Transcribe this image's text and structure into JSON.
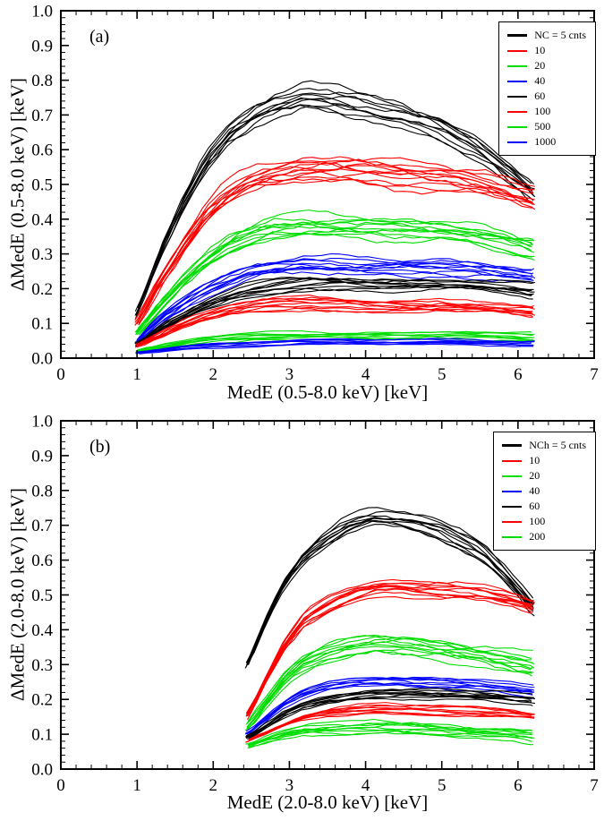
{
  "figure": {
    "background": "#ffffff",
    "frame_color": "#000000"
  },
  "chart_data": [
    {
      "type": "line",
      "panel_label": "(a)",
      "xlabel": "MedE (0.5-8.0 keV) [keV]",
      "ylabel": "ΔMedE (0.5-8.0 keV) [keV]",
      "xlim": [
        0,
        7
      ],
      "ylim": [
        0,
        1
      ],
      "xticks": [
        0,
        1,
        2,
        3,
        4,
        5,
        6,
        7
      ],
      "xtick_labels": [
        "0",
        "1",
        "2",
        "3",
        "4",
        "5",
        "6",
        "7"
      ],
      "yticks": [
        0,
        0.1,
        0.2,
        0.3,
        0.4,
        0.5,
        0.6,
        0.7,
        0.8,
        0.9,
        1.0
      ],
      "ytick_labels": [
        "0.0",
        "0.1",
        "0.2",
        "0.3",
        "0.4",
        "0.5",
        "0.6",
        "0.7",
        "0.8",
        "0.9",
        "1.0"
      ],
      "x_minor_divisions": 5,
      "y_minor_divisions": 5,
      "grid": false,
      "legend": {
        "position": "top-right",
        "entries": [
          {
            "label": "NC = 5 cnts",
            "color": "#000000"
          },
          {
            "label": "10",
            "color": "#ff0000"
          },
          {
            "label": "20",
            "color": "#00dd00"
          },
          {
            "label": "40",
            "color": "#0000ff"
          },
          {
            "label": "60",
            "color": "#000000"
          },
          {
            "label": "100",
            "color": "#ff0000"
          },
          {
            "label": "500",
            "color": "#00dd00"
          },
          {
            "label": "1000",
            "color": "#0000ff"
          }
        ]
      },
      "series": [
        {
          "name": "NC = 5 cnts",
          "color": "#000000",
          "n_curves": 10,
          "spread": 0.03,
          "x": [
            1.0,
            1.3,
            1.6,
            1.9,
            2.2,
            2.5,
            2.8,
            3.2,
            3.6,
            4.0,
            4.5,
            5.0,
            5.5,
            6.0,
            6.2
          ],
          "y": [
            0.13,
            0.3,
            0.44,
            0.56,
            0.64,
            0.69,
            0.72,
            0.75,
            0.745,
            0.73,
            0.7,
            0.66,
            0.6,
            0.51,
            0.47
          ]
        },
        {
          "name": "NC = 10 cnts",
          "color": "#ff0000",
          "n_curves": 12,
          "spread": 0.03,
          "x": [
            1.0,
            1.3,
            1.6,
            1.9,
            2.2,
            2.5,
            2.8,
            3.2,
            3.6,
            4.0,
            4.5,
            5.0,
            5.5,
            6.0,
            6.2
          ],
          "y": [
            0.1,
            0.22,
            0.32,
            0.41,
            0.47,
            0.51,
            0.53,
            0.545,
            0.545,
            0.54,
            0.53,
            0.52,
            0.5,
            0.47,
            0.455
          ]
        },
        {
          "name": "NC = 20 cnts",
          "color": "#00dd00",
          "n_curves": 11,
          "spread": 0.026,
          "x": [
            1.0,
            1.3,
            1.6,
            1.9,
            2.2,
            2.5,
            2.8,
            3.2,
            3.6,
            4.0,
            4.5,
            5.0,
            5.5,
            6.0,
            6.2
          ],
          "y": [
            0.07,
            0.15,
            0.22,
            0.28,
            0.325,
            0.355,
            0.375,
            0.385,
            0.38,
            0.375,
            0.37,
            0.365,
            0.35,
            0.325,
            0.315
          ]
        },
        {
          "name": "NC = 40 cnts",
          "color": "#0000ff",
          "n_curves": 10,
          "spread": 0.02,
          "x": [
            1.0,
            1.3,
            1.6,
            1.9,
            2.2,
            2.5,
            2.8,
            3.2,
            3.6,
            4.0,
            4.5,
            5.0,
            5.5,
            6.0,
            6.2
          ],
          "y": [
            0.05,
            0.11,
            0.155,
            0.195,
            0.225,
            0.25,
            0.26,
            0.27,
            0.268,
            0.265,
            0.262,
            0.26,
            0.252,
            0.24,
            0.235
          ]
        },
        {
          "name": "NC = 60 cnts",
          "color": "#000000",
          "n_curves": 10,
          "spread": 0.016,
          "x": [
            1.0,
            1.3,
            1.6,
            1.9,
            2.2,
            2.5,
            2.8,
            3.2,
            3.6,
            4.0,
            4.5,
            5.0,
            5.5,
            6.0,
            6.2
          ],
          "y": [
            0.04,
            0.085,
            0.12,
            0.15,
            0.175,
            0.195,
            0.205,
            0.215,
            0.215,
            0.213,
            0.213,
            0.213,
            0.208,
            0.198,
            0.193
          ]
        },
        {
          "name": "NC = 100 cnts",
          "color": "#ff0000",
          "n_curves": 10,
          "spread": 0.016,
          "x": [
            1.0,
            1.3,
            1.6,
            1.9,
            2.2,
            2.5,
            2.8,
            3.2,
            3.6,
            4.0,
            4.5,
            5.0,
            5.5,
            6.0,
            6.2
          ],
          "y": [
            0.035,
            0.065,
            0.095,
            0.118,
            0.135,
            0.148,
            0.155,
            0.158,
            0.157,
            0.153,
            0.15,
            0.15,
            0.145,
            0.135,
            0.13
          ]
        },
        {
          "name": "NC = 500 cnts",
          "color": "#00dd00",
          "n_curves": 8,
          "spread": 0.009,
          "x": [
            1.0,
            1.3,
            1.6,
            1.9,
            2.2,
            2.5,
            2.8,
            3.2,
            3.6,
            4.0,
            4.5,
            5.0,
            5.5,
            6.0,
            6.2
          ],
          "y": [
            0.02,
            0.032,
            0.042,
            0.051,
            0.057,
            0.061,
            0.064,
            0.066,
            0.066,
            0.066,
            0.066,
            0.066,
            0.064,
            0.061,
            0.06
          ]
        },
        {
          "name": "NC = 1000 cnts",
          "color": "#0000ff",
          "n_curves": 8,
          "spread": 0.007,
          "x": [
            1.0,
            1.3,
            1.6,
            1.9,
            2.2,
            2.5,
            2.8,
            3.2,
            3.6,
            4.0,
            4.5,
            5.0,
            5.5,
            6.0,
            6.2
          ],
          "y": [
            0.015,
            0.022,
            0.029,
            0.035,
            0.039,
            0.042,
            0.044,
            0.046,
            0.046,
            0.046,
            0.046,
            0.046,
            0.045,
            0.044,
            0.044
          ]
        }
      ]
    },
    {
      "type": "line",
      "panel_label": "(b)",
      "xlabel": "MedE (2.0-8.0 keV) [keV]",
      "ylabel": "ΔMedE (2.0-8.0 keV) [keV]",
      "xlim": [
        0,
        7
      ],
      "ylim": [
        0,
        1
      ],
      "xticks": [
        0,
        1,
        2,
        3,
        4,
        5,
        6,
        7
      ],
      "xtick_labels": [
        "0",
        "1",
        "2",
        "3",
        "4",
        "5",
        "6",
        "7"
      ],
      "yticks": [
        0,
        0.1,
        0.2,
        0.3,
        0.4,
        0.5,
        0.6,
        0.7,
        0.8,
        0.9,
        1.0
      ],
      "ytick_labels": [
        "0.0",
        "0.1",
        "0.2",
        "0.3",
        "0.4",
        "0.5",
        "0.6",
        "0.7",
        "0.8",
        "0.9",
        "1.0"
      ],
      "x_minor_divisions": 5,
      "y_minor_divisions": 5,
      "grid": false,
      "legend": {
        "position": "top-right",
        "entries": [
          {
            "label": "NCh = 5 cnts",
            "color": "#000000"
          },
          {
            "label": "10",
            "color": "#ff0000"
          },
          {
            "label": "20",
            "color": "#00dd00"
          },
          {
            "label": "40",
            "color": "#0000ff"
          },
          {
            "label": "60",
            "color": "#000000"
          },
          {
            "label": "100",
            "color": "#ff0000"
          },
          {
            "label": "200",
            "color": "#00dd00"
          }
        ]
      },
      "series": [
        {
          "name": "NCh = 5 cnts",
          "color": "#000000",
          "n_curves": 10,
          "spread": 0.022,
          "x": [
            2.45,
            2.7,
            2.95,
            3.2,
            3.5,
            3.8,
            4.1,
            4.4,
            4.7,
            5.0,
            5.3,
            5.6,
            6.0,
            6.2
          ],
          "y": [
            0.3,
            0.43,
            0.54,
            0.61,
            0.66,
            0.7,
            0.72,
            0.715,
            0.705,
            0.685,
            0.655,
            0.615,
            0.52,
            0.465
          ]
        },
        {
          "name": "NCh = 10 cnts",
          "color": "#ff0000",
          "n_curves": 11,
          "spread": 0.02,
          "x": [
            2.45,
            2.7,
            2.95,
            3.2,
            3.5,
            3.8,
            4.1,
            4.4,
            4.7,
            5.0,
            5.3,
            5.6,
            6.0,
            6.2
          ],
          "y": [
            0.15,
            0.26,
            0.36,
            0.43,
            0.47,
            0.5,
            0.52,
            0.525,
            0.52,
            0.515,
            0.51,
            0.5,
            0.48,
            0.465
          ]
        },
        {
          "name": "NCh = 20 cnts",
          "color": "#00dd00",
          "n_curves": 11,
          "spread": 0.026,
          "x": [
            2.45,
            2.7,
            2.95,
            3.2,
            3.5,
            3.8,
            4.1,
            4.4,
            4.7,
            5.0,
            5.3,
            5.6,
            6.0,
            6.2
          ],
          "y": [
            0.12,
            0.19,
            0.26,
            0.305,
            0.335,
            0.35,
            0.36,
            0.355,
            0.35,
            0.345,
            0.335,
            0.325,
            0.305,
            0.295
          ]
        },
        {
          "name": "NCh = 40 cnts",
          "color": "#0000ff",
          "n_curves": 9,
          "spread": 0.013,
          "x": [
            2.45,
            2.7,
            2.95,
            3.2,
            3.5,
            3.8,
            4.1,
            4.4,
            4.7,
            5.0,
            5.3,
            5.6,
            6.0,
            6.2
          ],
          "y": [
            0.1,
            0.145,
            0.19,
            0.22,
            0.24,
            0.25,
            0.253,
            0.253,
            0.25,
            0.247,
            0.243,
            0.238,
            0.228,
            0.222
          ]
        },
        {
          "name": "NCh = 60 cnts",
          "color": "#000000",
          "n_curves": 9,
          "spread": 0.012,
          "x": [
            2.45,
            2.7,
            2.95,
            3.2,
            3.5,
            3.8,
            4.1,
            4.4,
            4.7,
            5.0,
            5.3,
            5.6,
            6.0,
            6.2
          ],
          "y": [
            0.09,
            0.125,
            0.16,
            0.185,
            0.2,
            0.21,
            0.215,
            0.215,
            0.214,
            0.213,
            0.212,
            0.21,
            0.202,
            0.198
          ]
        },
        {
          "name": "NCh = 100 cnts",
          "color": "#ff0000",
          "n_curves": 9,
          "spread": 0.011,
          "x": [
            2.45,
            2.7,
            2.95,
            3.2,
            3.5,
            3.8,
            4.1,
            4.4,
            4.7,
            5.0,
            5.3,
            5.6,
            6.0,
            6.2
          ],
          "y": [
            0.08,
            0.105,
            0.13,
            0.15,
            0.162,
            0.168,
            0.172,
            0.172,
            0.17,
            0.168,
            0.166,
            0.163,
            0.157,
            0.153
          ]
        },
        {
          "name": "NCh = 200 cnts",
          "color": "#00dd00",
          "n_curves": 10,
          "spread": 0.016,
          "x": [
            2.45,
            2.7,
            2.95,
            3.2,
            3.5,
            3.8,
            4.1,
            4.4,
            4.7,
            5.0,
            5.3,
            5.6,
            6.0,
            6.2
          ],
          "y": [
            0.065,
            0.083,
            0.1,
            0.112,
            0.118,
            0.121,
            0.121,
            0.119,
            0.116,
            0.112,
            0.108,
            0.103,
            0.095,
            0.09
          ]
        }
      ]
    }
  ]
}
